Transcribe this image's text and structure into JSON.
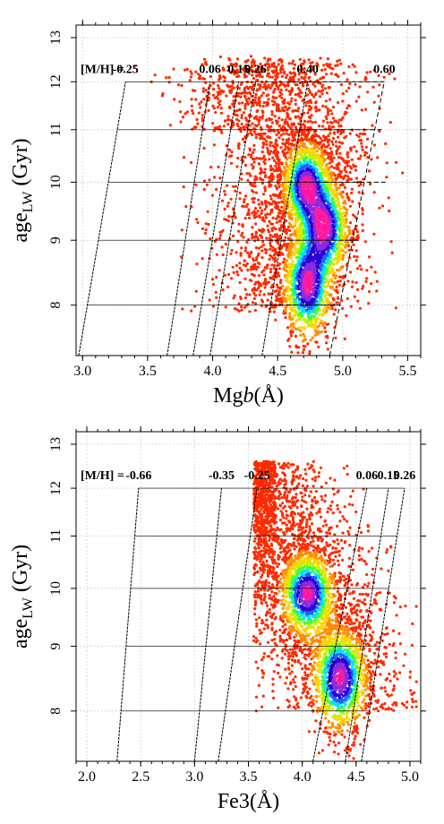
{
  "chart_data": [
    {
      "type": "scatter",
      "xlabel": "Mgb(Å)",
      "xlabel_parts": [
        "Mg",
        "b",
        "(",
        "Å",
        ")"
      ],
      "ylabel_parts": [
        "age",
        "LW",
        " (Gyr)"
      ],
      "xlim": [
        2.95,
        5.6
      ],
      "ylim": [
        7.3,
        13.3
      ],
      "log_y": true,
      "grid": true,
      "x_ticks": [
        "3.0",
        "3.5",
        "4.0",
        "4.5",
        "5.0",
        "5.5"
      ],
      "x_tick_values": [
        3.0,
        3.5,
        4.0,
        4.5,
        5.0,
        5.5
      ],
      "y_ticks": [
        "8",
        "9",
        "10",
        "11",
        "12",
        "13"
      ],
      "y_tick_values": [
        8,
        9,
        10,
        11,
        12,
        13
      ],
      "metallicity_prefix": "[M/H] =",
      "metallicity_values": [
        "-0.25",
        "0.06",
        "0.15",
        "0.26",
        "0.40",
        "0.60"
      ],
      "model_lines": [
        {
          "mh": "-0.25",
          "points": [
            [
              2.97,
              7.3
            ],
            [
              3.33,
              12.0
            ]
          ],
          "dashed": false
        },
        {
          "mh": "0.06",
          "points": [
            [
              3.65,
              7.3
            ],
            [
              3.98,
              12.0
            ]
          ],
          "dashed": false
        },
        {
          "mh": "0.15",
          "points": [
            [
              3.85,
              7.3
            ],
            [
              4.2,
              12.0
            ]
          ],
          "dashed": false
        },
        {
          "mh": "0.26",
          "points": [
            [
              3.98,
              7.3
            ],
            [
              4.33,
              12.0
            ]
          ],
          "dashed": false
        },
        {
          "mh": "0.40",
          "points": [
            [
              4.38,
              7.3
            ],
            [
              4.73,
              12.0
            ]
          ],
          "dashed": false
        },
        {
          "mh": "0.60",
          "points": [
            [
              4.9,
              7.3
            ],
            [
              5.32,
              12.0
            ]
          ],
          "dashed": true
        }
      ],
      "model_box_dashed": [
        {
          "x": [
            4.57,
            5.32
          ],
          "y": 12.0
        },
        {
          "x": [
            4.66,
            5.3
          ],
          "y": 11.0
        },
        {
          "x": [
            4.58,
            5.35
          ],
          "y": 10.0
        },
        {
          "x": [
            4.42,
            5.12
          ],
          "y": 9.0
        },
        {
          "x": [
            4.4,
            5.0
          ],
          "y": 8.0
        }
      ],
      "density_peaks": [
        {
          "x": 4.72,
          "y": 9.95,
          "level": "high"
        },
        {
          "x": 4.86,
          "y": 9.2,
          "level": "high"
        },
        {
          "x": 4.73,
          "y": 8.3,
          "level": "high"
        }
      ],
      "color_scale": [
        "#ff2a00",
        "#ff8c00",
        "#ffd400",
        "#c8f000",
        "#3cff40",
        "#00e0ff",
        "#2060ff",
        "#2a00d0",
        "#8a2be2",
        "#ff1aa0"
      ]
    },
    {
      "type": "scatter",
      "xlabel": "Fe3(Å)",
      "xlabel_parts": [
        "Fe3",
        "",
        "(",
        "Å",
        ")"
      ],
      "ylabel_parts": [
        "age",
        "LW",
        " (Gyr)"
      ],
      "xlim": [
        1.9,
        5.1
      ],
      "ylim": [
        7.3,
        13.3
      ],
      "log_y": true,
      "grid": true,
      "x_ticks": [
        "2.0",
        "2.5",
        "3.0",
        "3.5",
        "4.0",
        "4.5",
        "5.0"
      ],
      "x_tick_values": [
        2.0,
        2.5,
        3.0,
        3.5,
        4.0,
        4.5,
        5.0
      ],
      "y_ticks": [
        "8",
        "9",
        "10",
        "11",
        "12",
        "13"
      ],
      "y_tick_values": [
        8,
        9,
        10,
        11,
        12,
        13
      ],
      "metallicity_prefix": "[M/H] =",
      "metallicity_values": [
        "-0.66",
        "-0.35",
        "-0.25",
        "0.06",
        "0.15",
        "0.26"
      ],
      "model_lines": [
        {
          "mh": "-0.66",
          "points": [
            [
              2.28,
              7.3
            ],
            [
              2.48,
              12.0
            ]
          ],
          "dashed": false
        },
        {
          "mh": "-0.35",
          "points": [
            [
              3.0,
              7.3
            ],
            [
              3.25,
              12.0
            ]
          ],
          "dashed": false
        },
        {
          "mh": "-0.25",
          "points": [
            [
              3.22,
              7.3
            ],
            [
              3.58,
              12.0
            ]
          ],
          "dashed": false
        },
        {
          "mh": "0.06",
          "points": [
            [
              4.1,
              7.3
            ],
            [
              4.6,
              12.0
            ]
          ],
          "dashed": false
        },
        {
          "mh": "0.15",
          "points": [
            [
              4.4,
              7.3
            ],
            [
              4.8,
              12.0
            ]
          ],
          "dashed": false
        },
        {
          "mh": "0.26",
          "points": [
            [
              4.55,
              7.3
            ],
            [
              4.95,
              12.0
            ]
          ],
          "dashed": false
        }
      ],
      "model_box_dashed": [],
      "density_peaks": [
        {
          "x": 4.05,
          "y": 9.9,
          "level": "high"
        },
        {
          "x": 4.35,
          "y": 8.5,
          "level": "high"
        }
      ],
      "color_scale": [
        "#ff2a00",
        "#ff8c00",
        "#ffd400",
        "#c8f000",
        "#3cff40",
        "#00e0ff",
        "#2060ff",
        "#2a00d0",
        "#8a2be2",
        "#ff1aa0"
      ]
    }
  ]
}
